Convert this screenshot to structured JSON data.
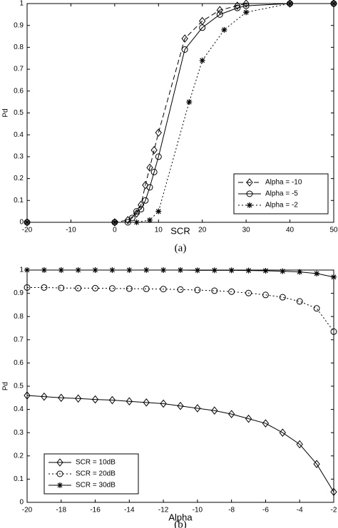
{
  "chart_data": [
    {
      "type": "line",
      "xlabel": "SCR",
      "ylabel": "Pd",
      "caption": "(a)",
      "xlim": [
        -20,
        50
      ],
      "ylim": [
        0,
        1
      ],
      "xticks": [
        -20,
        -10,
        0,
        10,
        20,
        30,
        40,
        50
      ],
      "yticks": [
        0,
        0.1,
        0.2,
        0.3,
        0.4,
        0.5,
        0.6,
        0.7,
        0.8,
        0.9,
        1
      ],
      "legend": "lower right",
      "series": [
        {
          "name": "Alpha = -10",
          "color": "#000000",
          "marker": "diamond",
          "linestyle": "dashed",
          "x": [
            -20,
            0,
            3,
            5,
            6,
            7,
            8,
            9,
            10,
            16,
            20,
            24,
            28,
            30,
            40,
            50
          ],
          "values": [
            0,
            0,
            0.01,
            0.04,
            0.08,
            0.17,
            0.25,
            0.33,
            0.41,
            0.84,
            0.92,
            0.97,
            0.99,
            1,
            1,
            1
          ]
        },
        {
          "name": "Alpha = -5",
          "color": "#000000",
          "marker": "circle",
          "linestyle": "solid",
          "x": [
            -20,
            0,
            3,
            4,
            5,
            6,
            7,
            8,
            9,
            10,
            16,
            20,
            24,
            28,
            30,
            40,
            50
          ],
          "values": [
            0,
            0,
            0,
            0.02,
            0.05,
            0.06,
            0.1,
            0.16,
            0.23,
            0.3,
            0.79,
            0.89,
            0.95,
            0.98,
            0.99,
            1,
            1
          ]
        },
        {
          "name": "Alpha = -2",
          "color": "#000000",
          "marker": "star",
          "linestyle": "dotted",
          "x": [
            -20,
            0,
            5,
            8,
            10,
            17,
            20,
            25,
            30,
            40,
            50
          ],
          "values": [
            0,
            0,
            0,
            0.01,
            0.05,
            0.55,
            0.74,
            0.88,
            0.96,
            1,
            1
          ]
        }
      ]
    },
    {
      "type": "line",
      "xlabel": "Alpha",
      "ylabel": "Pd",
      "caption": "(b)",
      "xlim": [
        -20,
        -2
      ],
      "ylim": [
        0,
        1
      ],
      "xticks": [
        -20,
        -18,
        -16,
        -14,
        -12,
        -10,
        -8,
        -6,
        -4,
        -2
      ],
      "yticks": [
        0,
        0.1,
        0.2,
        0.3,
        0.4,
        0.5,
        0.6,
        0.7,
        0.8,
        0.9,
        1
      ],
      "legend": "lower left",
      "x": [
        -20,
        -19,
        -18,
        -17,
        -16,
        -15,
        -14,
        -13,
        -12,
        -11,
        -10,
        -9,
        -8,
        -7,
        -6,
        -5,
        -4,
        -3,
        -2
      ],
      "series": [
        {
          "name": "SCR = 10dB",
          "color": "#000000",
          "marker": "diamond",
          "linestyle": "solid",
          "values": [
            0.46,
            0.455,
            0.45,
            0.447,
            0.443,
            0.44,
            0.435,
            0.43,
            0.425,
            0.415,
            0.405,
            0.395,
            0.38,
            0.36,
            0.34,
            0.3,
            0.25,
            0.165,
            0.045
          ]
        },
        {
          "name": "SCR = 20dB",
          "color": "#000000",
          "marker": "circle",
          "linestyle": "dotted",
          "values": [
            0.925,
            0.925,
            0.923,
            0.922,
            0.922,
            0.921,
            0.92,
            0.919,
            0.918,
            0.916,
            0.914,
            0.911,
            0.907,
            0.901,
            0.893,
            0.883,
            0.865,
            0.835,
            0.735
          ]
        },
        {
          "name": "SCR = 30dB",
          "color": "#000000",
          "marker": "star",
          "linestyle": "solid",
          "values": [
            1,
            1,
            1,
            1,
            1,
            1,
            1,
            1,
            1,
            1,
            0.999,
            0.999,
            0.999,
            0.998,
            0.997,
            0.995,
            0.992,
            0.985,
            0.97
          ]
        }
      ]
    }
  ]
}
